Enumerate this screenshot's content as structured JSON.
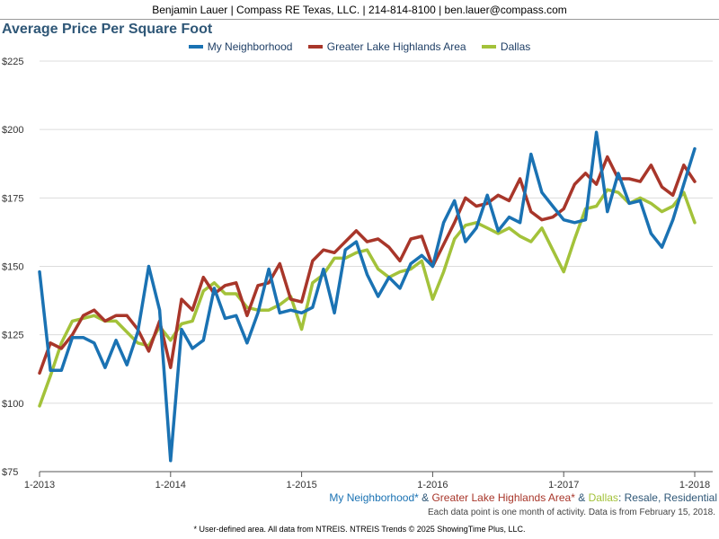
{
  "header": {
    "contact_line": "Benjamin Lauer | Compass RE Texas, LLC. | 214-814-8100 | ben.lauer@compass.com"
  },
  "caption": {
    "series_1": "My Neighborhood*",
    "sep_1": " & ",
    "series_2": "Greater Lake Highlands Area*",
    "sep_2": " & ",
    "series_3": "Dallas",
    "suffix": ": Resale, Residential"
  },
  "note": "Each data point is one month of activity. Data is from February 15, 2018.",
  "footer": "* User-defined area. All data from NTREIS. NTREIS Trends © 2025 ShowingTime Plus, LLC.",
  "colors": {
    "my_neighborhood": "#1a72b3",
    "greater_lake_highlands": "#a8362a",
    "dallas": "#a3c23a",
    "title": "#2f5777",
    "caption_suffix": "#2f5777"
  },
  "chart_data": {
    "type": "line",
    "title": "Average Price Per Square Foot",
    "xlabel": "",
    "ylabel": "",
    "ylim": [
      75,
      225
    ],
    "y_ticks": [
      "$75",
      "$100",
      "$125",
      "$150",
      "$175",
      "$200",
      "$225"
    ],
    "y_tick_values": [
      75,
      100,
      125,
      150,
      175,
      200,
      225
    ],
    "x_tick_labels": [
      "1-2013",
      "1-2014",
      "1-2015",
      "1-2016",
      "1-2017",
      "1-2018"
    ],
    "x_tick_index": [
      0,
      12,
      24,
      36,
      48,
      60
    ],
    "x_range": [
      0,
      60
    ],
    "legend_position": "top-center",
    "grid": "horizontal",
    "series": [
      {
        "name": "My Neighborhood",
        "color": "#1a72b3",
        "values": [
          148,
          112,
          112,
          124,
          124,
          122,
          113,
          123,
          114,
          126,
          150,
          134,
          79,
          127,
          120,
          123,
          142,
          131,
          132,
          122,
          133,
          149,
          133,
          134,
          133,
          135,
          149,
          133,
          156,
          159,
          147,
          139,
          146,
          142,
          151,
          154,
          150,
          166,
          174,
          159,
          164,
          176,
          163,
          168,
          166,
          191,
          177,
          172,
          167,
          166,
          167,
          199,
          170,
          184,
          173,
          174,
          162,
          157,
          167,
          180,
          193
        ]
      },
      {
        "name": "Greater Lake Highlands Area",
        "color": "#a8362a",
        "values": [
          111,
          122,
          120,
          125,
          132,
          134,
          130,
          132,
          132,
          127,
          119,
          130,
          113,
          138,
          134,
          146,
          140,
          143,
          144,
          132,
          143,
          144,
          151,
          138,
          137,
          152,
          156,
          155,
          159,
          163,
          159,
          160,
          157,
          152,
          160,
          161,
          150,
          158,
          166,
          175,
          172,
          173,
          176,
          174,
          182,
          170,
          167,
          168,
          171,
          180,
          184,
          180,
          190,
          182,
          182,
          181,
          187,
          179,
          176,
          187,
          181
        ]
      },
      {
        "name": "Dallas",
        "color": "#a3c23a",
        "values": [
          99,
          110,
          122,
          130,
          131,
          132,
          130,
          130,
          126,
          122,
          121,
          128,
          123,
          129,
          130,
          141,
          144,
          140,
          140,
          135,
          134,
          134,
          136,
          139,
          127,
          144,
          147,
          153,
          153,
          155,
          156,
          149,
          146,
          148,
          149,
          152,
          138,
          148,
          160,
          165,
          166,
          164,
          162,
          164,
          161,
          159,
          164,
          156,
          148,
          160,
          171,
          172,
          178,
          177,
          173,
          175,
          173,
          170,
          172,
          177,
          166
        ]
      }
    ]
  }
}
